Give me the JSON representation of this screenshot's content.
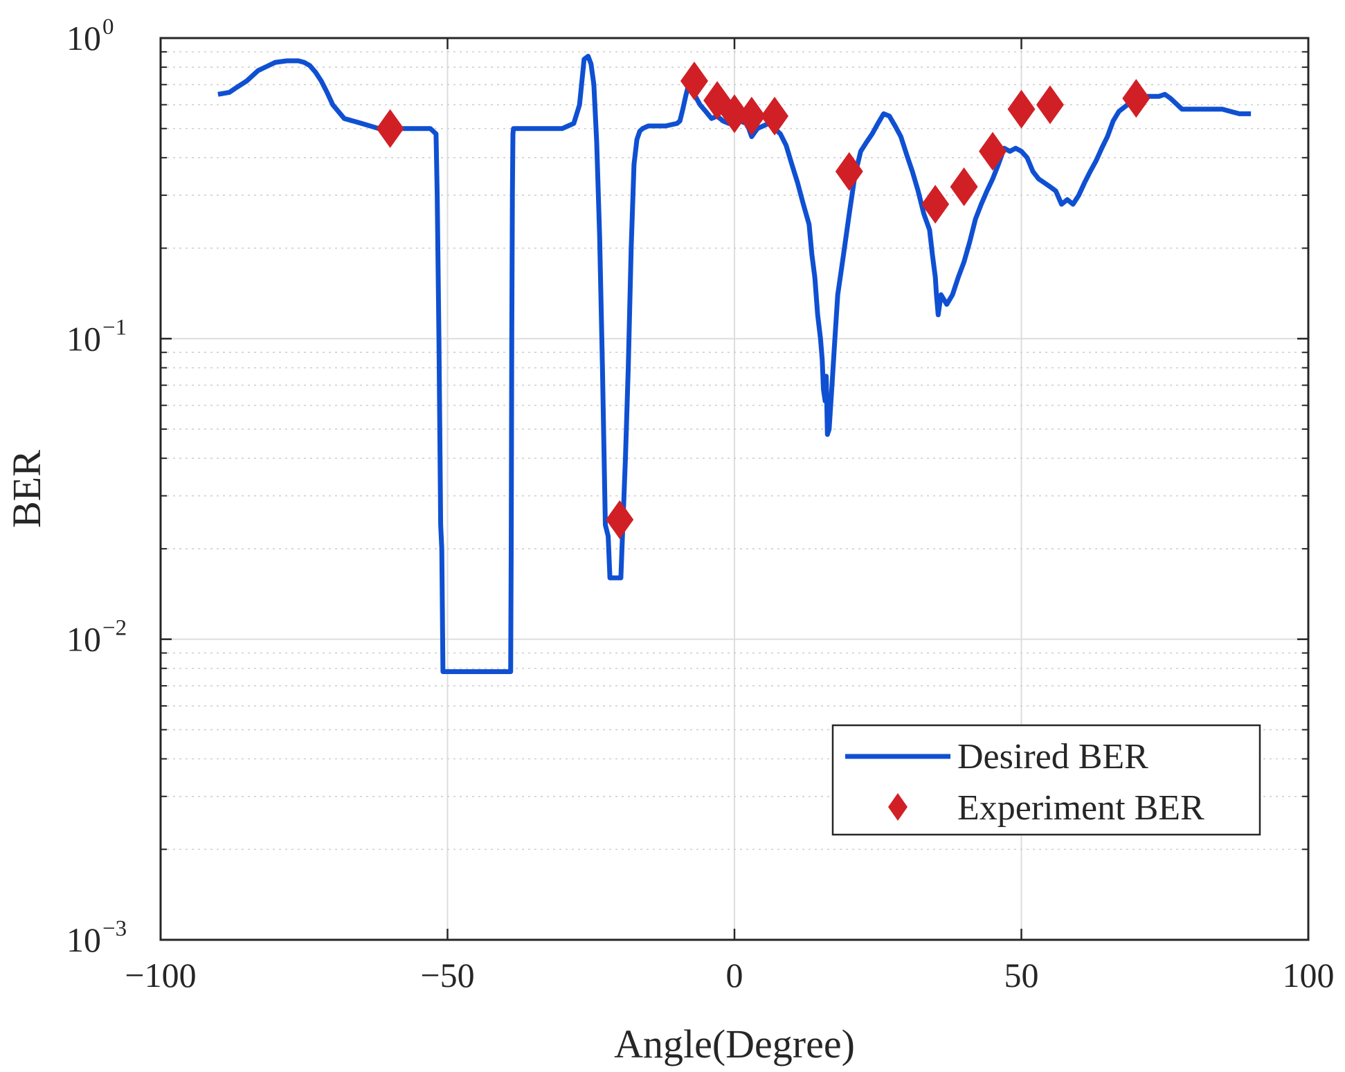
{
  "chart_data": {
    "type": "line",
    "title": "",
    "xlabel": "Angle(Degree)",
    "ylabel": "BER",
    "xlim": [
      -100,
      100
    ],
    "ylim": [
      0.001,
      1
    ],
    "yscale": "log",
    "grid": true,
    "legend_location": "bottom-right",
    "x_ticks": [
      -100,
      -50,
      0,
      50,
      100
    ],
    "x_tick_labels": [
      "−100",
      "−50",
      "0",
      "50",
      "100"
    ],
    "y_ticks": [
      0.001,
      0.01,
      0.1,
      1
    ],
    "y_tick_labels": [
      {
        "base": "10",
        "exp": "−3"
      },
      {
        "base": "10",
        "exp": "−2"
      },
      {
        "base": "10",
        "exp": "−1"
      },
      {
        "base": "10",
        "exp": "0"
      }
    ],
    "series": [
      {
        "name": "Desired BER",
        "style": "line",
        "color": "#0f50d2",
        "x": [
          -90,
          -88,
          -87,
          -85,
          -83,
          -80,
          -78,
          -76,
          -75,
          -74,
          -73,
          -72,
          -71,
          -70,
          -68,
          -65,
          -62,
          -60,
          -58,
          -55,
          -53,
          -52,
          -51.8,
          -51.5,
          -51.2,
          -51,
          -50.8,
          -39,
          -38.9,
          -38.8,
          -38.7,
          -38.6,
          -38.5,
          -38,
          -36,
          -33,
          -30,
          -29,
          -28,
          -27,
          -26.2,
          -25.5,
          -25,
          -24.5,
          -24,
          -23.5,
          -23,
          -22.5,
          -22,
          -21.7,
          -21.5,
          -21,
          -20.5,
          -20,
          -19.8,
          -19.6,
          -19,
          -18.5,
          -18,
          -17.5,
          -17,
          -16.5,
          -16,
          -15,
          -14,
          -12,
          -10,
          -9.5,
          -9,
          -8.5,
          -8,
          -7.5,
          -7,
          -6,
          -5,
          -4,
          -3,
          -2,
          -1,
          0,
          1,
          2,
          2.5,
          3,
          4,
          5,
          6,
          7,
          8,
          9,
          10,
          11,
          12,
          13,
          13.5,
          14,
          14.5,
          15,
          15.3,
          15.5,
          15.8,
          16,
          16.2,
          16.5,
          17,
          17.5,
          18,
          19,
          20,
          21,
          22,
          23,
          24,
          25,
          26,
          27,
          28,
          29,
          30,
          31,
          32,
          33,
          34,
          34.5,
          35,
          35.2,
          35.5,
          36,
          37,
          38,
          39,
          40,
          41,
          42,
          43,
          44,
          45,
          46,
          47,
          48,
          49,
          50,
          51,
          52,
          53,
          54,
          55,
          56,
          57,
          58,
          59,
          60,
          61,
          62,
          63,
          64,
          65,
          66,
          67,
          68,
          69,
          70,
          72,
          74,
          75,
          76,
          78,
          80,
          82,
          85,
          88,
          90
        ],
        "y": [
          0.65,
          0.66,
          0.68,
          0.72,
          0.78,
          0.83,
          0.84,
          0.84,
          0.83,
          0.81,
          0.77,
          0.72,
          0.66,
          0.6,
          0.54,
          0.52,
          0.5,
          0.5,
          0.5,
          0.5,
          0.5,
          0.48,
          0.3,
          0.1,
          0.024,
          0.02,
          0.0078,
          0.0078,
          0.02,
          0.1,
          0.3,
          0.48,
          0.5,
          0.5,
          0.5,
          0.5,
          0.5,
          0.51,
          0.52,
          0.6,
          0.85,
          0.87,
          0.82,
          0.7,
          0.45,
          0.22,
          0.08,
          0.024,
          0.022,
          0.016,
          0.016,
          0.016,
          0.016,
          0.016,
          0.016,
          0.02,
          0.04,
          0.08,
          0.2,
          0.38,
          0.46,
          0.49,
          0.5,
          0.51,
          0.51,
          0.51,
          0.52,
          0.53,
          0.58,
          0.64,
          0.7,
          0.68,
          0.65,
          0.6,
          0.57,
          0.54,
          0.55,
          0.53,
          0.52,
          0.52,
          0.53,
          0.52,
          0.5,
          0.47,
          0.5,
          0.51,
          0.52,
          0.5,
          0.48,
          0.44,
          0.38,
          0.33,
          0.28,
          0.24,
          0.19,
          0.16,
          0.12,
          0.1,
          0.085,
          0.068,
          0.062,
          0.075,
          0.048,
          0.05,
          0.07,
          0.1,
          0.14,
          0.19,
          0.26,
          0.35,
          0.42,
          0.45,
          0.48,
          0.52,
          0.56,
          0.55,
          0.51,
          0.47,
          0.41,
          0.36,
          0.31,
          0.26,
          0.23,
          0.19,
          0.16,
          0.14,
          0.12,
          0.14,
          0.13,
          0.14,
          0.16,
          0.18,
          0.21,
          0.25,
          0.28,
          0.31,
          0.34,
          0.38,
          0.43,
          0.42,
          0.43,
          0.42,
          0.4,
          0.36,
          0.34,
          0.33,
          0.32,
          0.31,
          0.28,
          0.29,
          0.28,
          0.3,
          0.33,
          0.36,
          0.39,
          0.43,
          0.47,
          0.53,
          0.57,
          0.59,
          0.61,
          0.62,
          0.64,
          0.64,
          0.65,
          0.63,
          0.58,
          0.58,
          0.58,
          0.58,
          0.56,
          0.56
        ]
      },
      {
        "name": "Experiment BER",
        "style": "marker-diamond",
        "color": "#d11f26",
        "x": [
          -60,
          -20,
          -7,
          -3,
          0,
          3,
          7,
          20,
          35,
          40,
          45,
          50,
          55,
          70
        ],
        "y": [
          0.5,
          0.025,
          0.72,
          0.62,
          0.56,
          0.55,
          0.55,
          0.36,
          0.28,
          0.32,
          0.42,
          0.58,
          0.6,
          0.63
        ]
      }
    ]
  }
}
